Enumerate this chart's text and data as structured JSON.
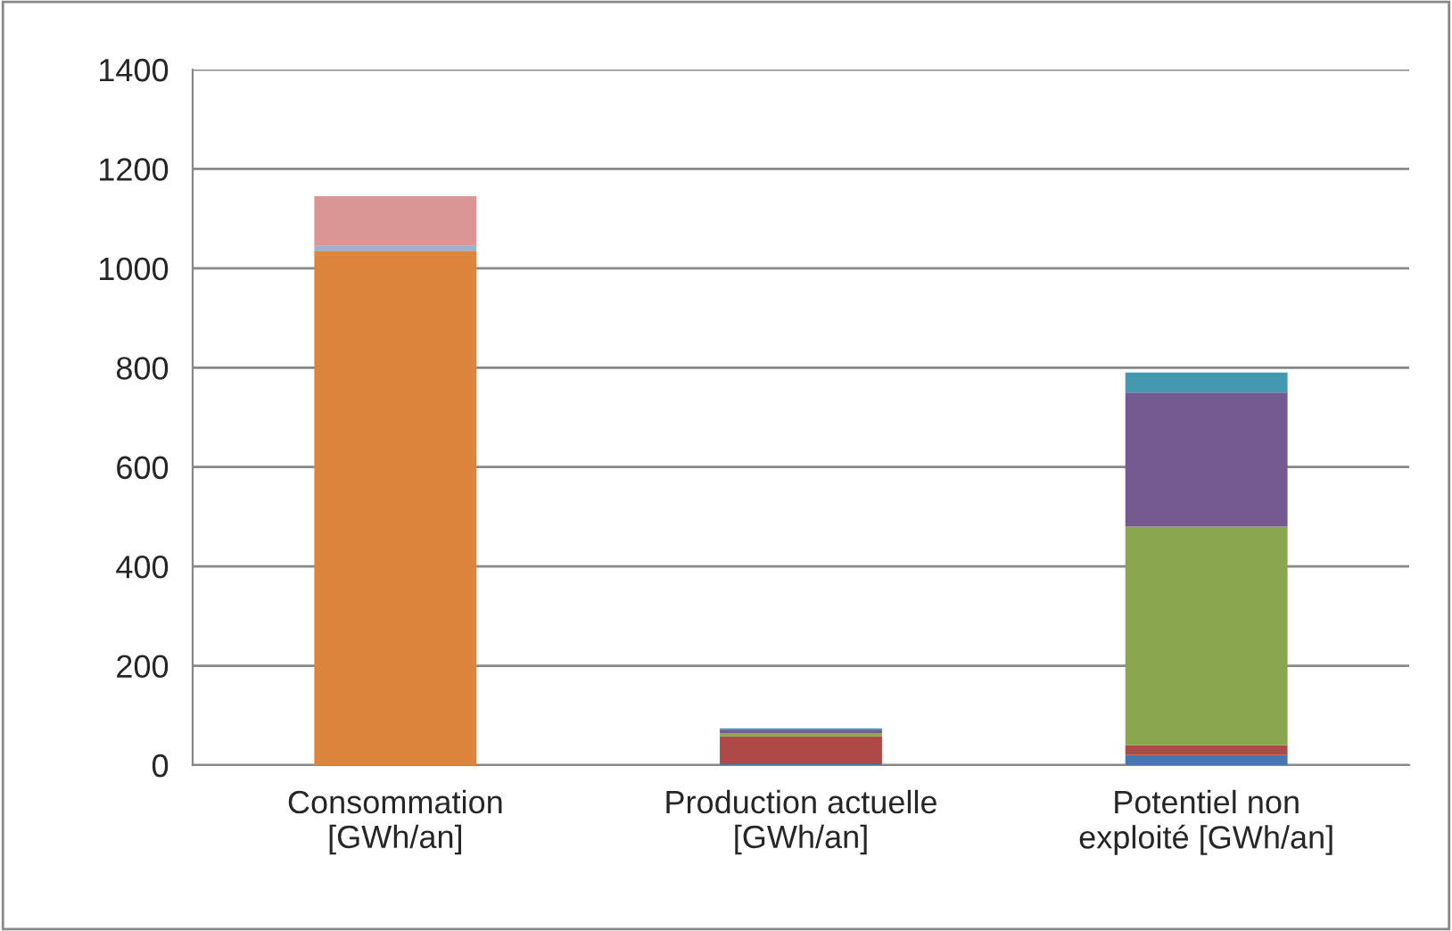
{
  "chart_data": {
    "type": "bar",
    "stacked": true,
    "categories": [
      "Consommation\n[GWh/an]",
      "Production actuelle\n[GWh/an]",
      "Potentiel non\nexploité [GWh/an]"
    ],
    "series": [
      {
        "color": "#4877af",
        "values": [
          null,
          2,
          20
        ]
      },
      {
        "color": "#ad4a47",
        "values": [
          null,
          56,
          20
        ]
      },
      {
        "color": "#8aa64f",
        "values": [
          null,
          6,
          440
        ]
      },
      {
        "color": "#745a91",
        "values": [
          null,
          6,
          270
        ]
      },
      {
        "color": "#4499b0",
        "values": [
          null,
          4,
          40
        ]
      },
      {
        "color": "#dd843c",
        "values": [
          1035,
          null,
          null
        ]
      },
      {
        "color": "#95b3d7",
        "values": [
          10,
          null,
          null
        ]
      },
      {
        "color": "#d99694",
        "values": [
          100,
          null,
          null
        ]
      }
    ],
    "ylim": [
      0,
      1400
    ],
    "yticks": [
      0,
      200,
      400,
      600,
      800,
      1000,
      1200,
      1400
    ],
    "grid": "y"
  }
}
